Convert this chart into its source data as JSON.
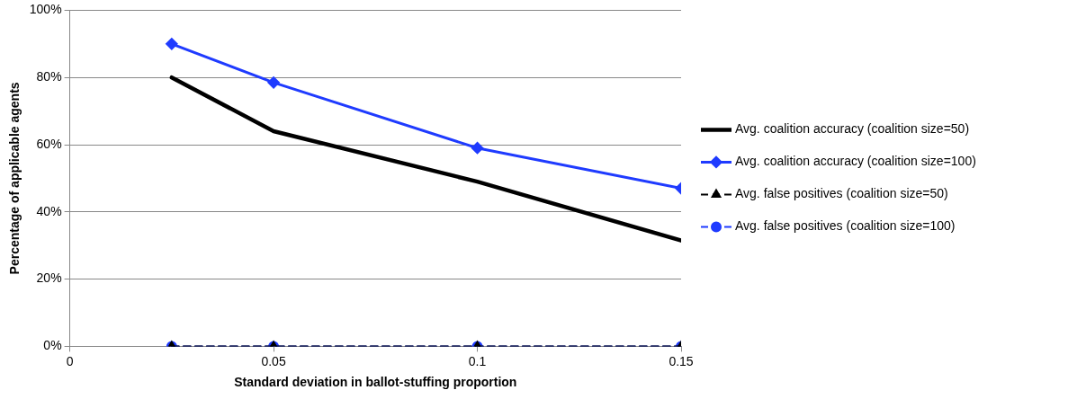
{
  "chart_data": {
    "type": "line",
    "xlabel": "Standard deviation in ballot-stuffing proportion",
    "ylabel": "Percentage of applicable agents",
    "x": [
      0.025,
      0.05,
      0.1,
      0.15
    ],
    "series": [
      {
        "name": "Avg. coalition accuracy (coalition size=50)",
        "color": "#000000",
        "values": [
          80,
          64,
          49,
          31.5
        ],
        "marker": "none",
        "line_style": "solid"
      },
      {
        "name": "Avg. coalition accuracy (coalition size=100)",
        "color": "#1f3bff",
        "values": [
          90,
          78.5,
          59,
          47
        ],
        "marker": "diamond",
        "line_style": "solid"
      },
      {
        "name": "Avg. false positives (coalition size=50)",
        "color": "#000000",
        "values": [
          0,
          0,
          0,
          0
        ],
        "marker": "triangle",
        "line_style": "dashed"
      },
      {
        "name": "Avg. false positives (coalition size=100)",
        "color": "#1f3bff",
        "values": [
          0,
          0,
          0,
          0
        ],
        "marker": "circle",
        "line_style": "dashed"
      }
    ],
    "xlim": [
      0,
      0.15
    ],
    "xticks": [
      0,
      0.05,
      0.1,
      0.15
    ],
    "ylim": [
      0,
      100
    ],
    "yticks": [
      {
        "value": 0,
        "label": "0%"
      },
      {
        "value": 20,
        "label": "20%"
      },
      {
        "value": 40,
        "label": "40%"
      },
      {
        "value": 60,
        "label": "60%"
      },
      {
        "value": 80,
        "label": "80%"
      },
      {
        "value": 100,
        "label": "100%"
      }
    ],
    "grid": "y",
    "legend": "right"
  }
}
